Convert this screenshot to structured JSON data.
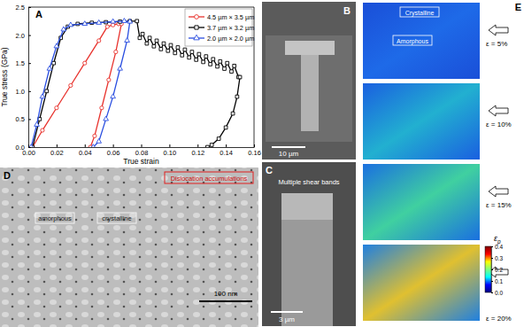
{
  "chart_data": {
    "type": "line",
    "xlabel": "True strain",
    "ylabel": "True stress (GPa)",
    "xlim": [
      0,
      0.16
    ],
    "xticks": [
      {
        "value": 0,
        "label": "0.00"
      },
      0.02,
      0.04,
      0.06,
      0.08,
      {
        "value": 0.1,
        "label": "0.10"
      },
      0.12,
      0.14,
      0.16
    ],
    "ylim": [
      0,
      2.5
    ],
    "yticks": [
      {
        "value": 0,
        "label": "0.0"
      },
      0.5,
      {
        "value": 1,
        "label": "1.0"
      },
      1.5,
      {
        "value": 2,
        "label": "2.0"
      },
      2.5
    ],
    "legend": "upper right",
    "series": [
      {
        "name": "4.5 µm × 3.5 µm",
        "color": "#e8322d",
        "marker": "circle",
        "x": [
          0.003,
          0.01,
          0.02,
          0.03,
          0.04,
          0.05,
          0.056,
          0.06,
          0.064,
          0.066,
          0.062,
          0.057,
          0.052,
          0.047,
          0.044
        ],
        "values": [
          0,
          0.3,
          0.7,
          1.1,
          1.5,
          1.9,
          2.15,
          2.18,
          2.2,
          2.2,
          1.7,
          1.2,
          0.7,
          0.2,
          0
        ]
      },
      {
        "name": "3.7 µm × 3.2 µm",
        "color": "#000000",
        "marker": "square",
        "x": [
          0.003,
          0.008,
          0.013,
          0.018,
          0.023,
          0.028,
          0.035,
          0.045,
          0.055,
          0.065,
          0.072,
          0.077,
          0.079,
          0.081,
          0.084,
          0.086,
          0.089,
          0.091,
          0.094,
          0.096,
          0.099,
          0.101,
          0.104,
          0.106,
          0.109,
          0.111,
          0.114,
          0.116,
          0.119,
          0.121,
          0.124,
          0.126,
          0.129,
          0.131,
          0.134,
          0.136,
          0.139,
          0.141,
          0.144,
          0.146,
          0.149,
          0.15,
          0.148,
          0.145,
          0.14,
          0.135,
          0.13,
          0.127
        ],
        "values": [
          0,
          0.5,
          1.0,
          1.5,
          1.95,
          2.15,
          2.2,
          2.22,
          2.23,
          2.24,
          2.25,
          2.25,
          1.95,
          2.02,
          1.85,
          1.95,
          1.8,
          1.9,
          1.75,
          1.85,
          1.72,
          1.82,
          1.68,
          1.78,
          1.64,
          1.74,
          1.6,
          1.7,
          1.56,
          1.66,
          1.52,
          1.62,
          1.48,
          1.57,
          1.44,
          1.53,
          1.4,
          1.5,
          1.35,
          1.45,
          1.25,
          1.25,
          0.9,
          0.6,
          0.35,
          0.15,
          0.04,
          0
        ]
      },
      {
        "name": "2.0 µm × 2.0 µm",
        "color": "#2a4ee0",
        "marker": "triangle",
        "x": [
          0.002,
          0.006,
          0.01,
          0.015,
          0.02,
          0.025,
          0.03,
          0.04,
          0.05,
          0.06,
          0.068,
          0.072,
          0.07,
          0.065,
          0.06,
          0.055,
          0.05,
          0.046
        ],
        "values": [
          0,
          0.4,
          0.9,
          1.4,
          1.8,
          2.1,
          2.18,
          2.2,
          2.22,
          2.24,
          2.25,
          2.24,
          1.9,
          1.4,
          0.9,
          0.5,
          0.1,
          0
        ]
      }
    ]
  },
  "panels": {
    "A": {
      "label": "A"
    },
    "B": {
      "label": "B",
      "scale_bar": "10 µm"
    },
    "C": {
      "label": "C",
      "annotation": "Multiple shear bands",
      "scale_bar": "3 µm"
    },
    "D": {
      "label": "D",
      "annotations": [
        "Dislocation accumulations",
        "amorphous",
        "crystalline"
      ],
      "scale_bar": "100 nm"
    },
    "E": {
      "label": "E",
      "annotations": [
        "Crystalline",
        "Amorphous"
      ],
      "strains": [
        "ε = 5%",
        "ε = 10%",
        "ε = 15%",
        "ε = 20%"
      ],
      "colorbar": {
        "label": "ε",
        "subscript": "p",
        "range": [
          0,
          0.4
        ],
        "ticks": [
          {
            "value": 0,
            "label": "0.0"
          },
          0.1,
          0.2,
          0.3,
          0.4
        ]
      }
    }
  }
}
